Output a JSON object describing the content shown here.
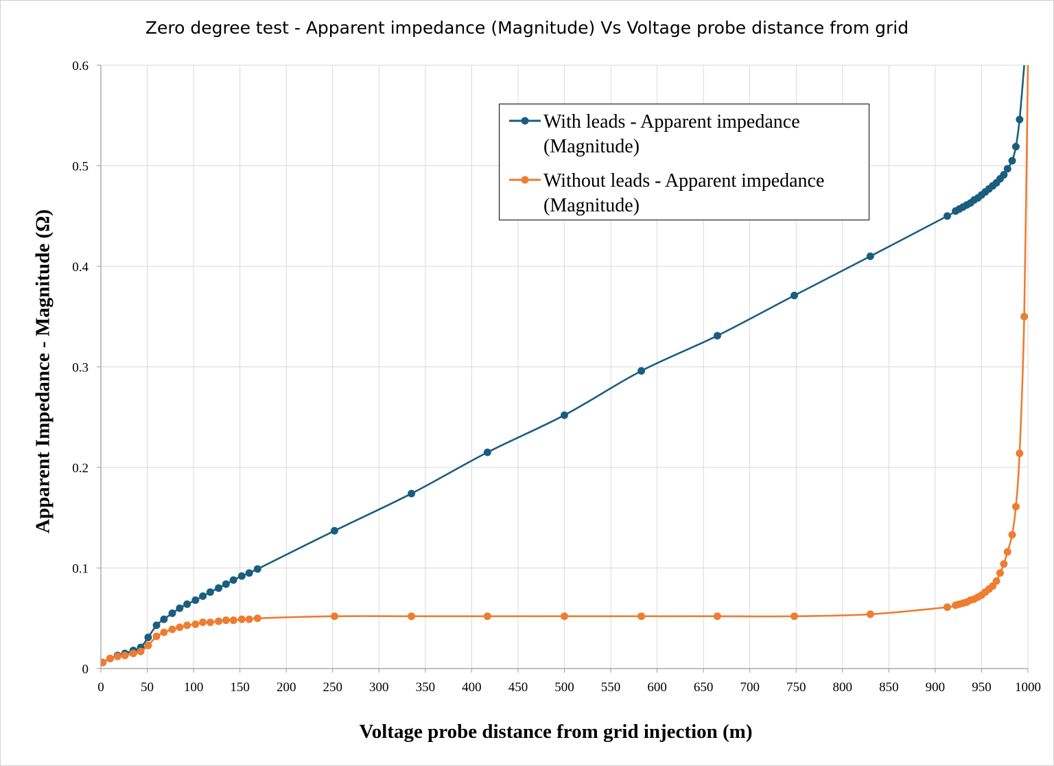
{
  "chart_data": {
    "type": "line",
    "title": "Zero degree test - Apparent impedance (Magnitude) Vs Voltage probe distance from grid",
    "xlabel": "Voltage probe distance from grid injection (m)",
    "ylabel": "Apparent Impedance - Magnitude (Ω)",
    "xlim": [
      0,
      1000
    ],
    "ylim": [
      0,
      0.6
    ],
    "x_ticks": [
      "0",
      "50",
      "100",
      "150",
      "200",
      "250",
      "300",
      "350",
      "400",
      "450",
      "500",
      "550",
      "600",
      "650",
      "700",
      "750",
      "800",
      "850",
      "900",
      "950",
      "1000"
    ],
    "y_ticks": [
      "0",
      "0.1",
      "0.2",
      "0.3",
      "0.4",
      "0.5",
      "0.6"
    ],
    "grid": true,
    "legend_position": "top-right",
    "series": [
      {
        "name": "With leads - Apparent impedance (Magnitude)",
        "color": "#1a5e7f",
        "marker": "circle",
        "points": [
          [
            2,
            0.006
          ],
          [
            10,
            0.01
          ],
          [
            18,
            0.013
          ],
          [
            26,
            0.015
          ],
          [
            35,
            0.018
          ],
          [
            43,
            0.021
          ],
          [
            51,
            0.031
          ],
          [
            60,
            0.043
          ],
          [
            68,
            0.049
          ],
          [
            77,
            0.055
          ],
          [
            85,
            0.06
          ],
          [
            93,
            0.064
          ],
          [
            102,
            0.068
          ],
          [
            110,
            0.072
          ],
          [
            118,
            0.076
          ],
          [
            127,
            0.08
          ],
          [
            135,
            0.084
          ],
          [
            143,
            0.088
          ],
          [
            152,
            0.092
          ],
          [
            160,
            0.095
          ],
          [
            169,
            0.099
          ],
          [
            252,
            0.137
          ],
          [
            335,
            0.174
          ],
          [
            417,
            0.215
          ],
          [
            500,
            0.252
          ],
          [
            583,
            0.296
          ],
          [
            665,
            0.331
          ],
          [
            748,
            0.371
          ],
          [
            830,
            0.41
          ],
          [
            913,
            0.45
          ],
          [
            922,
            0.455
          ],
          [
            926,
            0.457
          ],
          [
            930,
            0.459
          ],
          [
            934,
            0.461
          ],
          [
            938,
            0.463
          ],
          [
            942,
            0.466
          ],
          [
            946,
            0.468
          ],
          [
            950,
            0.471
          ],
          [
            954,
            0.474
          ],
          [
            958,
            0.477
          ],
          [
            962,
            0.48
          ],
          [
            966,
            0.483
          ],
          [
            970,
            0.487
          ],
          [
            974,
            0.491
          ],
          [
            978,
            0.497
          ],
          [
            983,
            0.505
          ],
          [
            987,
            0.519
          ],
          [
            991,
            0.546
          ],
          [
            996,
            0.6
          ]
        ]
      },
      {
        "name": "Without leads - Apparent impedance (Magnitude)",
        "color": "#ed7d31",
        "marker": "circle",
        "points": [
          [
            2,
            0.006
          ],
          [
            10,
            0.01
          ],
          [
            18,
            0.012
          ],
          [
            26,
            0.013
          ],
          [
            35,
            0.015
          ],
          [
            43,
            0.017
          ],
          [
            51,
            0.023
          ],
          [
            60,
            0.032
          ],
          [
            68,
            0.036
          ],
          [
            77,
            0.039
          ],
          [
            85,
            0.041
          ],
          [
            93,
            0.043
          ],
          [
            102,
            0.044
          ],
          [
            110,
            0.046
          ],
          [
            118,
            0.046
          ],
          [
            127,
            0.047
          ],
          [
            135,
            0.048
          ],
          [
            143,
            0.048
          ],
          [
            152,
            0.049
          ],
          [
            160,
            0.049
          ],
          [
            169,
            0.05
          ],
          [
            252,
            0.052
          ],
          [
            335,
            0.052
          ],
          [
            417,
            0.052
          ],
          [
            500,
            0.052
          ],
          [
            583,
            0.052
          ],
          [
            665,
            0.052
          ],
          [
            748,
            0.052
          ],
          [
            830,
            0.054
          ],
          [
            913,
            0.061
          ],
          [
            922,
            0.063
          ],
          [
            926,
            0.064
          ],
          [
            930,
            0.065
          ],
          [
            934,
            0.066
          ],
          [
            938,
            0.068
          ],
          [
            942,
            0.069
          ],
          [
            946,
            0.071
          ],
          [
            950,
            0.073
          ],
          [
            954,
            0.076
          ],
          [
            958,
            0.079
          ],
          [
            962,
            0.082
          ],
          [
            966,
            0.087
          ],
          [
            970,
            0.095
          ],
          [
            974,
            0.104
          ],
          [
            978,
            0.116
          ],
          [
            983,
            0.133
          ],
          [
            987,
            0.161
          ],
          [
            991,
            0.214
          ],
          [
            996,
            0.35
          ],
          [
            1000,
            0.6
          ]
        ]
      }
    ]
  }
}
